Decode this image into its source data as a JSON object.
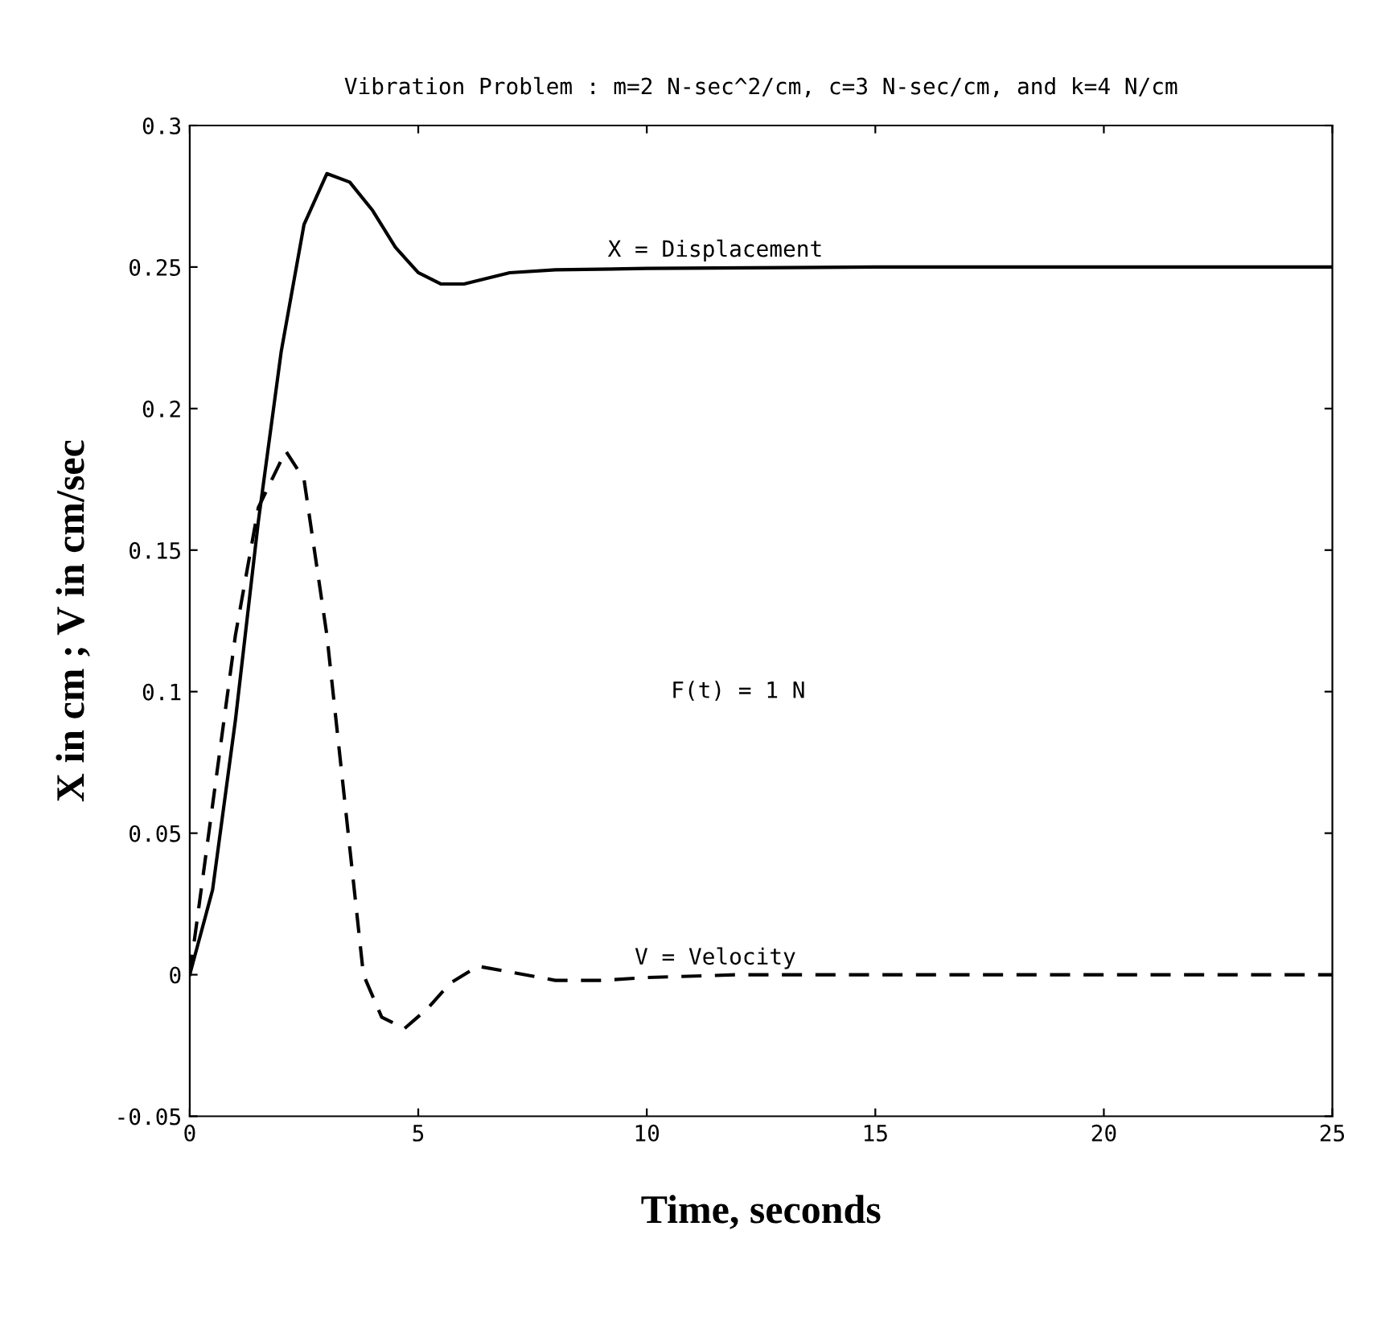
{
  "chart_data": {
    "type": "line",
    "title": "Vibration Problem : m=2 N-sec^2/cm, c=3 N-sec/cm, and k=4 N/cm",
    "xlabel": "Time, seconds",
    "ylabel": "X in cm ; V in cm/sec",
    "series": [
      {
        "name": "X = Displacement",
        "color": "#000000",
        "line_style": "solid",
        "x": [
          0,
          0.5,
          1,
          1.5,
          2,
          2.5,
          3,
          3.5,
          4,
          4.5,
          5,
          5.5,
          6,
          6.5,
          7,
          8,
          10,
          15,
          25
        ],
        "values": [
          0,
          0.03,
          0.09,
          0.16,
          0.22,
          0.265,
          0.283,
          0.28,
          0.27,
          0.257,
          0.248,
          0.244,
          0.244,
          0.246,
          0.248,
          0.249,
          0.2495,
          0.25,
          0.25
        ]
      },
      {
        "name": "V = Velocity",
        "color": "#000000",
        "line_style": "dashed",
        "x": [
          0,
          0.5,
          1,
          1.5,
          2.1,
          2.5,
          3,
          3.5,
          3.8,
          4.2,
          4.7,
          5.2,
          5.7,
          6.3,
          7,
          8,
          9,
          10,
          12,
          25
        ],
        "values": [
          0,
          0.06,
          0.12,
          0.165,
          0.185,
          0.175,
          0.12,
          0.045,
          0,
          -0.015,
          -0.019,
          -0.012,
          -0.003,
          0.003,
          0.001,
          -0.002,
          -0.002,
          -0.001,
          0,
          0
        ]
      }
    ],
    "annotations": [
      "F(t) = 1 N"
    ],
    "xlim": [
      0,
      25
    ],
    "xticks": [
      0,
      5,
      10,
      15,
      20,
      25
    ],
    "ylim": [
      -0.05,
      0.3
    ],
    "yticks": [
      -0.05,
      0,
      0.05,
      0.1,
      0.15,
      0.2,
      0.25,
      0.3
    ],
    "grid": false,
    "legend": false
  }
}
